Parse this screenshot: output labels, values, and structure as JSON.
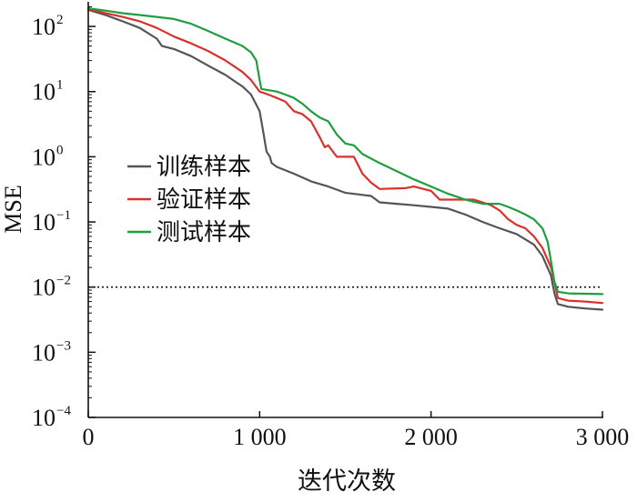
{
  "chart_data": {
    "type": "line",
    "xlabel": "迭代次数",
    "ylabel": "MSE",
    "xlim": [
      0,
      3000
    ],
    "ylim_exponent": [
      -4,
      2.35
    ],
    "y_scale": "log",
    "grid": false,
    "legend_position": "middle-left",
    "x_ticks": [
      {
        "value": 0,
        "label": "0"
      },
      {
        "value": 1000,
        "label": "1 000"
      },
      {
        "value": 2000,
        "label": "2 000"
      },
      {
        "value": 3000,
        "label": "3 000"
      }
    ],
    "y_ticks": [
      {
        "exp": 2,
        "base": "10",
        "sup": "2"
      },
      {
        "exp": 1,
        "base": "10",
        "sup": "1"
      },
      {
        "exp": 0,
        "base": "10",
        "sup": "0"
      },
      {
        "exp": -1,
        "base": "10",
        "sup": "−1"
      },
      {
        "exp": -2,
        "base": "10",
        "sup": "−2"
      },
      {
        "exp": -3,
        "base": "10",
        "sup": "−3"
      },
      {
        "exp": -4,
        "base": "10",
        "sup": "−4"
      }
    ],
    "reference_line": {
      "y": 0.01,
      "x_range": [
        0,
        3000
      ],
      "style": "dotted"
    },
    "series": [
      {
        "name": "训练样本",
        "color": "#555555",
        "points": [
          [
            0,
            180
          ],
          [
            100,
            150
          ],
          [
            200,
            120
          ],
          [
            300,
            95
          ],
          [
            400,
            65
          ],
          [
            430,
            50
          ],
          [
            500,
            45
          ],
          [
            600,
            35
          ],
          [
            700,
            25
          ],
          [
            800,
            18
          ],
          [
            900,
            12
          ],
          [
            950,
            9
          ],
          [
            1000,
            5
          ],
          [
            1020,
            2.5
          ],
          [
            1040,
            1.2
          ],
          [
            1060,
            1.0
          ],
          [
            1070,
            0.8
          ],
          [
            1100,
            0.7
          ],
          [
            1200,
            0.55
          ],
          [
            1300,
            0.42
          ],
          [
            1400,
            0.35
          ],
          [
            1500,
            0.28
          ],
          [
            1600,
            0.26
          ],
          [
            1650,
            0.25
          ],
          [
            1700,
            0.2
          ],
          [
            1800,
            0.19
          ],
          [
            1900,
            0.18
          ],
          [
            2000,
            0.17
          ],
          [
            2100,
            0.16
          ],
          [
            2200,
            0.13
          ],
          [
            2300,
            0.1
          ],
          [
            2400,
            0.08
          ],
          [
            2500,
            0.065
          ],
          [
            2600,
            0.045
          ],
          [
            2650,
            0.03
          ],
          [
            2700,
            0.015
          ],
          [
            2720,
            0.008
          ],
          [
            2740,
            0.0055
          ],
          [
            2800,
            0.005
          ],
          [
            2900,
            0.0047
          ],
          [
            3000,
            0.0045
          ]
        ]
      },
      {
        "name": "验证样本",
        "color": "#d9312b",
        "points": [
          [
            0,
            185
          ],
          [
            100,
            160
          ],
          [
            200,
            140
          ],
          [
            300,
            120
          ],
          [
            400,
            95
          ],
          [
            500,
            70
          ],
          [
            600,
            55
          ],
          [
            700,
            42
          ],
          [
            800,
            30
          ],
          [
            900,
            20
          ],
          [
            950,
            15
          ],
          [
            1000,
            10
          ],
          [
            1050,
            9
          ],
          [
            1100,
            8
          ],
          [
            1150,
            7
          ],
          [
            1200,
            5
          ],
          [
            1250,
            4.5
          ],
          [
            1300,
            3.5
          ],
          [
            1350,
            2
          ],
          [
            1380,
            1.4
          ],
          [
            1400,
            1.5
          ],
          [
            1450,
            1.0
          ],
          [
            1550,
            1.0
          ],
          [
            1600,
            0.55
          ],
          [
            1650,
            0.4
          ],
          [
            1700,
            0.32
          ],
          [
            1850,
            0.33
          ],
          [
            1900,
            0.35
          ],
          [
            2000,
            0.3
          ],
          [
            2050,
            0.22
          ],
          [
            2250,
            0.22
          ],
          [
            2300,
            0.2
          ],
          [
            2350,
            0.18
          ],
          [
            2400,
            0.15
          ],
          [
            2450,
            0.11
          ],
          [
            2500,
            0.09
          ],
          [
            2550,
            0.08
          ],
          [
            2600,
            0.06
          ],
          [
            2650,
            0.04
          ],
          [
            2700,
            0.02
          ],
          [
            2720,
            0.012
          ],
          [
            2740,
            0.0068
          ],
          [
            2800,
            0.0062
          ],
          [
            2900,
            0.006
          ],
          [
            3000,
            0.0057
          ]
        ]
      },
      {
        "name": "测试样本",
        "color": "#1f9e3f",
        "points": [
          [
            0,
            190
          ],
          [
            100,
            175
          ],
          [
            200,
            160
          ],
          [
            300,
            150
          ],
          [
            400,
            140
          ],
          [
            500,
            130
          ],
          [
            600,
            110
          ],
          [
            700,
            85
          ],
          [
            800,
            65
          ],
          [
            900,
            50
          ],
          [
            950,
            40
          ],
          [
            980,
            30
          ],
          [
            1000,
            15
          ],
          [
            1010,
            11
          ],
          [
            1100,
            10
          ],
          [
            1150,
            9
          ],
          [
            1200,
            8
          ],
          [
            1250,
            6.5
          ],
          [
            1300,
            5
          ],
          [
            1350,
            4
          ],
          [
            1400,
            3.5
          ],
          [
            1450,
            2.2
          ],
          [
            1500,
            1.6
          ],
          [
            1550,
            1.5
          ],
          [
            1600,
            1.1
          ],
          [
            1700,
            0.8
          ],
          [
            1800,
            0.6
          ],
          [
            1900,
            0.45
          ],
          [
            2000,
            0.35
          ],
          [
            2100,
            0.27
          ],
          [
            2200,
            0.22
          ],
          [
            2300,
            0.19
          ],
          [
            2400,
            0.19
          ],
          [
            2450,
            0.17
          ],
          [
            2500,
            0.15
          ],
          [
            2550,
            0.13
          ],
          [
            2600,
            0.11
          ],
          [
            2650,
            0.08
          ],
          [
            2680,
            0.05
          ],
          [
            2700,
            0.025
          ],
          [
            2720,
            0.012
          ],
          [
            2740,
            0.0085
          ],
          [
            2800,
            0.008
          ],
          [
            2900,
            0.0079
          ],
          [
            3000,
            0.0078
          ]
        ]
      }
    ]
  }
}
